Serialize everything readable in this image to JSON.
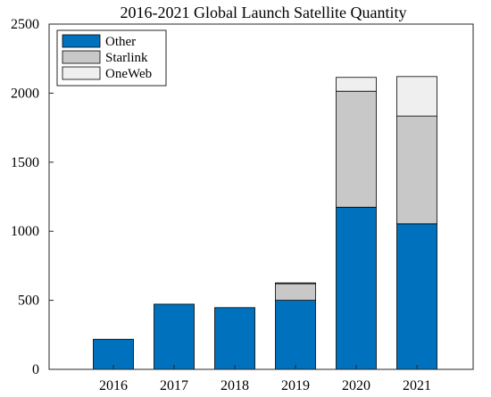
{
  "chart_data": {
    "type": "bar",
    "stacked": true,
    "title": "2016-2021 Global Launch Satellite Quantity",
    "xlabel": "",
    "ylabel": "",
    "categories": [
      "2016",
      "2017",
      "2018",
      "2019",
      "2020",
      "2021"
    ],
    "ylim": [
      0,
      2500
    ],
    "yticks": [
      0,
      500,
      1000,
      1500,
      2000,
      2500
    ],
    "grid": false,
    "legend_position": "top-left",
    "series": [
      {
        "name": "Other",
        "color": "#0072BD",
        "values": [
          218,
          472,
          447,
          500,
          1174,
          1054
        ]
      },
      {
        "name": "Starlink",
        "color": "#C8C8C8",
        "values": [
          0,
          0,
          0,
          120,
          840,
          780
        ]
      },
      {
        "name": "OneWeb",
        "color": "#EFEFEF",
        "values": [
          0,
          0,
          0,
          6,
          100,
          286
        ]
      }
    ]
  }
}
